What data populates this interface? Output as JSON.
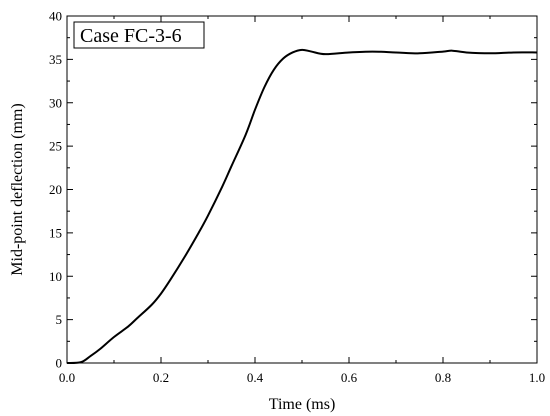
{
  "chart_data": {
    "type": "line",
    "annotation": "Case FC-3-6",
    "xlabel": "Time (ms)",
    "ylabel": "Mid-point deflection (mm)",
    "xlim": [
      0,
      1.0
    ],
    "ylim": [
      0,
      40
    ],
    "xticks": [
      0.0,
      0.2,
      0.4,
      0.6,
      0.8,
      1.0
    ],
    "xtick_labels": [
      "0.0",
      "0.2",
      "0.4",
      "0.6",
      "0.8",
      "1.0"
    ],
    "yticks": [
      0,
      5,
      10,
      15,
      20,
      25,
      30,
      35,
      40
    ],
    "ytick_labels": [
      "0",
      "5",
      "10",
      "15",
      "20",
      "25",
      "30",
      "35",
      "40"
    ],
    "grid": false,
    "line_color": "#000000",
    "series": [
      {
        "x": [
          0.0,
          0.03,
          0.05,
          0.07,
          0.1,
          0.13,
          0.15,
          0.18,
          0.2,
          0.22,
          0.25,
          0.28,
          0.3,
          0.33,
          0.35,
          0.38,
          0.4,
          0.42,
          0.44,
          0.46,
          0.48,
          0.5,
          0.52,
          0.55,
          0.6,
          0.65,
          0.7,
          0.75,
          0.8,
          0.82,
          0.85,
          0.9,
          0.95,
          1.0
        ],
        "y": [
          0.0,
          0.1,
          0.8,
          1.6,
          3.0,
          4.2,
          5.2,
          6.7,
          8.0,
          9.6,
          12.2,
          15.0,
          17.0,
          20.3,
          22.7,
          26.3,
          29.2,
          31.8,
          33.8,
          35.1,
          35.8,
          36.1,
          35.9,
          35.6,
          35.8,
          35.9,
          35.8,
          35.7,
          35.9,
          36.0,
          35.8,
          35.7,
          35.8,
          35.8
        ]
      }
    ]
  }
}
